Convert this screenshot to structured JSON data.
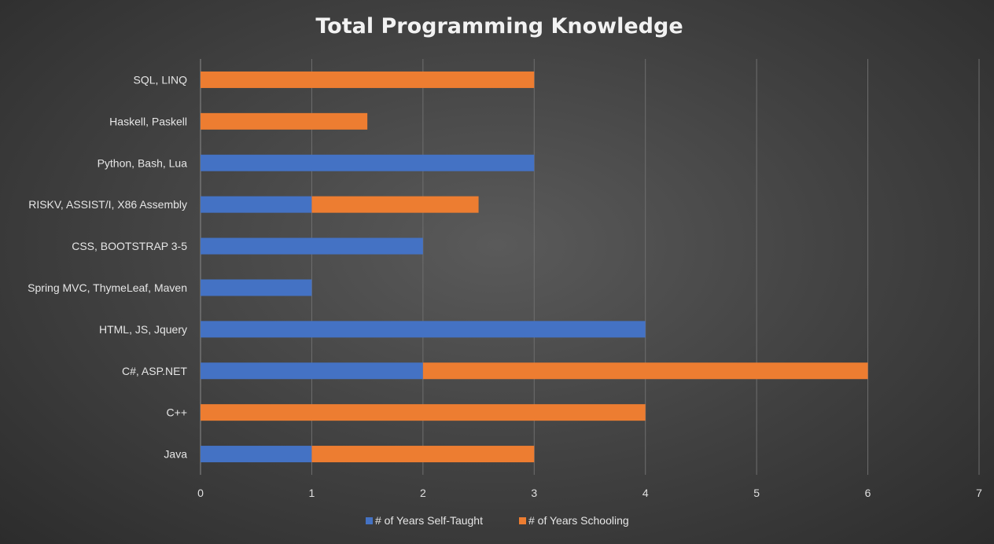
{
  "chart_data": {
    "type": "bar",
    "orientation": "horizontal",
    "stacked": true,
    "title": "Total Programming Knowledge",
    "categories": [
      "Java",
      "C++",
      "C#, ASP.NET",
      "HTML, JS, Jquery",
      "Spring MVC, ThymeLeaf, Maven",
      "CSS, BOOTSTRAP 3-5",
      "RISKV, ASSIST/I, X86 Assembly",
      "Python, Bash, Lua",
      "Haskell, Paskell",
      "SQL, LINQ"
    ],
    "series": [
      {
        "name": "# of Years Self-Taught",
        "color": "#4472c4",
        "values": [
          1,
          0,
          2,
          4,
          1,
          2,
          1,
          3,
          0,
          0
        ]
      },
      {
        "name": "# of Years Schooling",
        "color": "#ed7d31",
        "values": [
          2,
          4,
          4,
          0,
          0,
          0,
          1.5,
          0,
          1.5,
          3
        ]
      }
    ],
    "xlim": [
      0,
      7
    ],
    "xticks": [
      "0",
      "1",
      "2",
      "3",
      "4",
      "5",
      "6",
      "7"
    ],
    "grid": true,
    "legend": "bottom"
  }
}
